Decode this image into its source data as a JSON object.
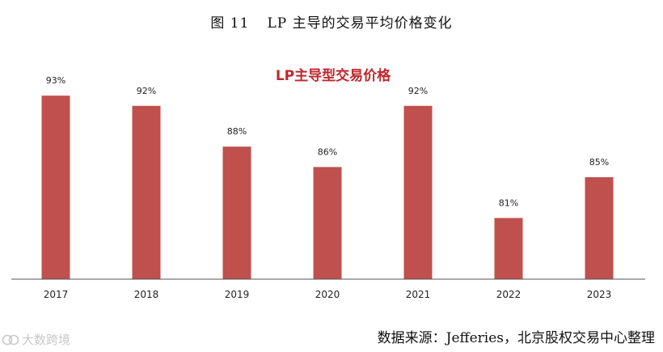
{
  "figure": {
    "number": "图 11",
    "title": "LP 主导的交易平均价格变化"
  },
  "source": "数据来源：Jefferies，北京股权交易中心整理",
  "watermark": "大数跨境",
  "colors": {
    "bar": "#c0504d",
    "title": "#c0272d",
    "axis": "#555555"
  },
  "chart_data": {
    "type": "bar",
    "title": "LP主导型交易价格",
    "categories": [
      "2017",
      "2018",
      "2019",
      "2020",
      "2021",
      "2022",
      "2023"
    ],
    "values": [
      93,
      92,
      88,
      86,
      92,
      81,
      85
    ],
    "value_labels": [
      "93%",
      "92%",
      "88%",
      "86%",
      "92%",
      "81%",
      "85%"
    ],
    "unit": "%",
    "ylim": [
      75,
      95
    ],
    "grid": false,
    "legend": "none"
  }
}
